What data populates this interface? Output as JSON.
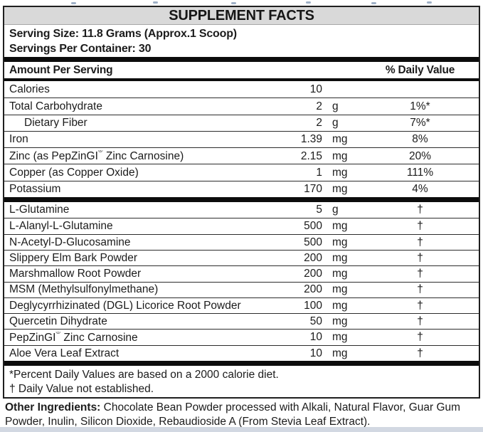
{
  "label": {
    "title": "SUPPLEMENT FACTS",
    "serving_size": "Serving Size: 11.8 Grams (Approx.1 Scoop)",
    "servings_per_container": "Servings Per Container: 30",
    "columns": {
      "amount": "Amount Per Serving",
      "dv": "% Daily Value"
    },
    "section1": [
      {
        "name": "Calories",
        "amount": "10",
        "unit": "",
        "dv": ""
      },
      {
        "name": "Total Carbohydrate",
        "amount": "2",
        "unit": "g",
        "dv": "1%*"
      },
      {
        "name": "Dietary Fiber",
        "amount": "2",
        "unit": "g",
        "dv": "7%*",
        "indent": true
      },
      {
        "name": "Iron",
        "amount": "1.39",
        "unit": "mg",
        "dv": "8%"
      },
      {
        "name": "Zinc (as PepZinGI® Zinc Carnosine)",
        "amount": "2.15",
        "unit": "mg",
        "dv": "20%"
      },
      {
        "name": "Copper (as Copper Oxide)",
        "amount": "1",
        "unit": "mg",
        "dv": "111%"
      },
      {
        "name": "Potassium",
        "amount": "170",
        "unit": "mg",
        "dv": "4%"
      }
    ],
    "section2": [
      {
        "name": "L-Glutamine",
        "amount": "5",
        "unit": "g",
        "dv": "†"
      },
      {
        "name": "L-Alanyl-L-Glutamine",
        "amount": "500",
        "unit": "mg",
        "dv": "†"
      },
      {
        "name": "N-Acetyl-D-Glucosamine",
        "amount": "500",
        "unit": "mg",
        "dv": "†"
      },
      {
        "name": "Slippery Elm Bark Powder",
        "amount": "200",
        "unit": "mg",
        "dv": "†"
      },
      {
        "name": "Marshmallow Root Powder",
        "amount": "200",
        "unit": "mg",
        "dv": "†"
      },
      {
        "name": "MSM (Methylsulfonylmethane)",
        "amount": "200",
        "unit": "mg",
        "dv": "†"
      },
      {
        "name": "Deglycyrrhizinated (DGL) Licorice Root Powder",
        "amount": "100",
        "unit": "mg",
        "dv": "†"
      },
      {
        "name": "Quercetin Dihydrate",
        "amount": "50",
        "unit": "mg",
        "dv": "†"
      },
      {
        "name": "PepZinGI® Zinc Carnosine",
        "amount": "10",
        "unit": "mg",
        "dv": "†"
      },
      {
        "name": "Aloe Vera Leaf Extract",
        "amount": "10",
        "unit": "mg",
        "dv": "†"
      }
    ],
    "footnotes": [
      "*Percent Daily Values are based on a 2000 calorie diet.",
      "† Daily Value not established."
    ],
    "other_ingredients_label": "Other Ingredients:",
    "other_ingredients_text": " Chocolate Bean Powder processed with Alkali, Natural Flavor, Guar Gum Powder, Inulin, Silicon Dioxide, Rebaudioside A (From Stevia Leaf Extract)."
  },
  "colors": {
    "title_band_bg": "#d9d9d9",
    "divider_bar": "#0c0c0c",
    "text": "#1c1c1c",
    "bottom_strip": "#d2d8e2",
    "cropped_text_blue": "#8096b4"
  }
}
